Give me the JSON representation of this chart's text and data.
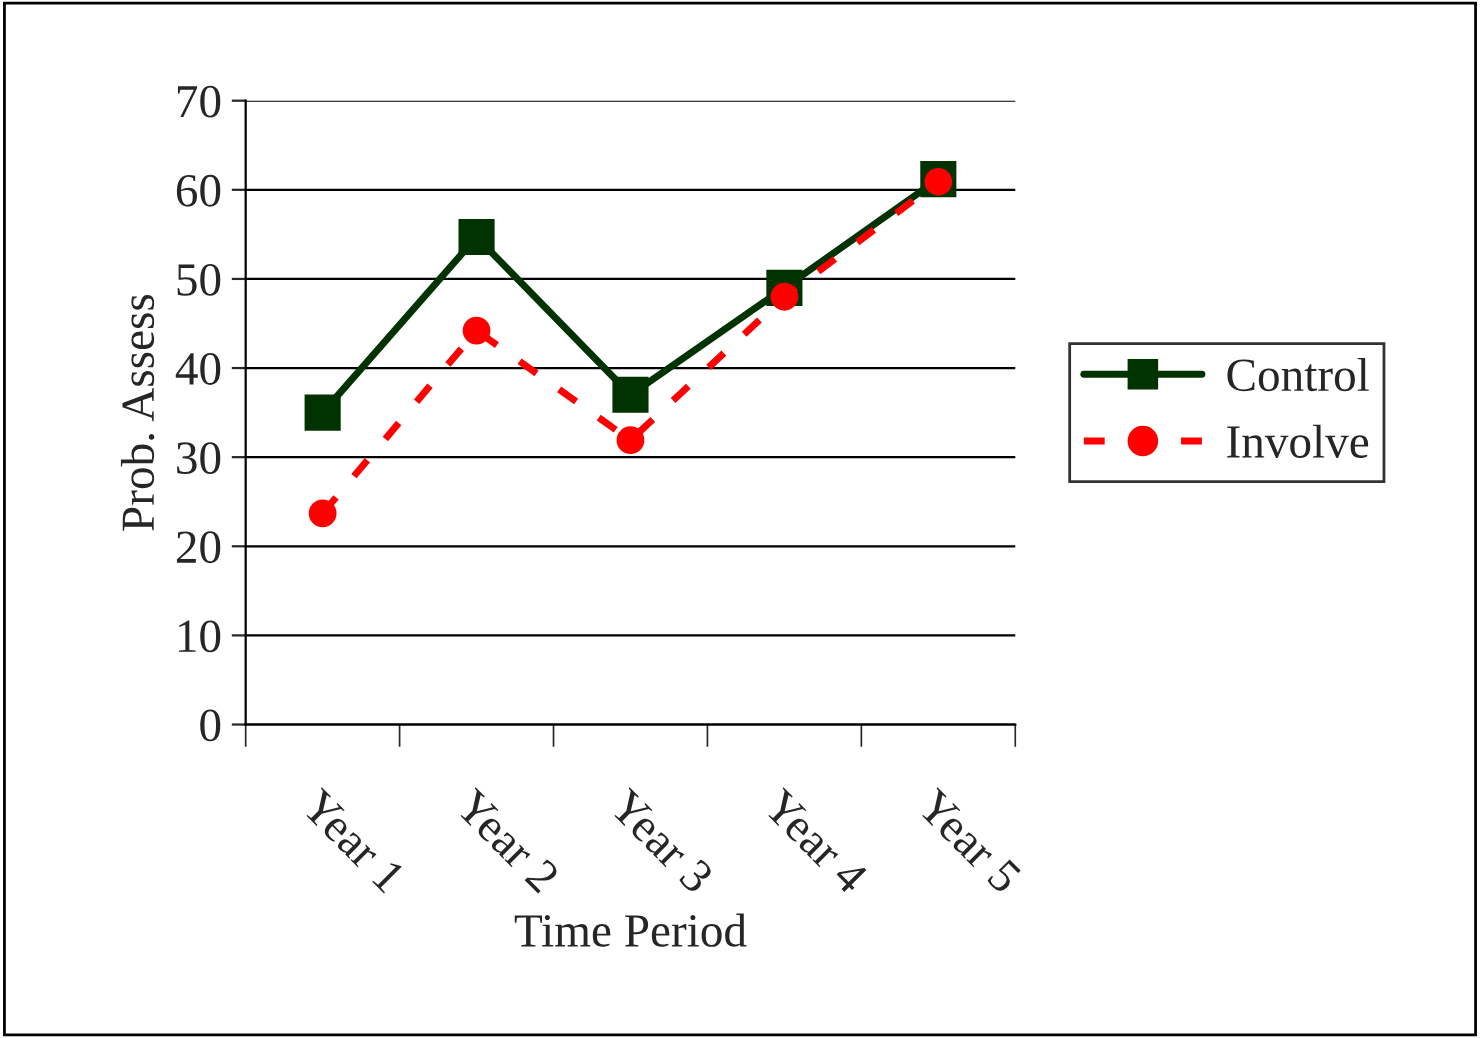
{
  "chart_data": {
    "type": "line",
    "xlabel": "Time Period",
    "ylabel": "Prob. Assess",
    "categories": [
      "Year 1",
      "Year 2",
      "Year 3",
      "Year 4",
      "Year 5"
    ],
    "series": [
      {
        "name": "Control",
        "color": "#003300",
        "values": [
          35,
          54.7,
          37,
          49,
          61.2
        ],
        "marker": "square",
        "line_style": "solid"
      },
      {
        "name": "Involve",
        "color": "#ff0000",
        "values": [
          23.7,
          44.2,
          31.9,
          48,
          60.9
        ],
        "marker": "circle",
        "line_style": "dashed"
      }
    ],
    "ylim": [
      0,
      70
    ],
    "yticks": [
      0,
      10,
      20,
      30,
      40,
      50,
      60,
      70
    ],
    "grid": "y",
    "legend": "right"
  }
}
